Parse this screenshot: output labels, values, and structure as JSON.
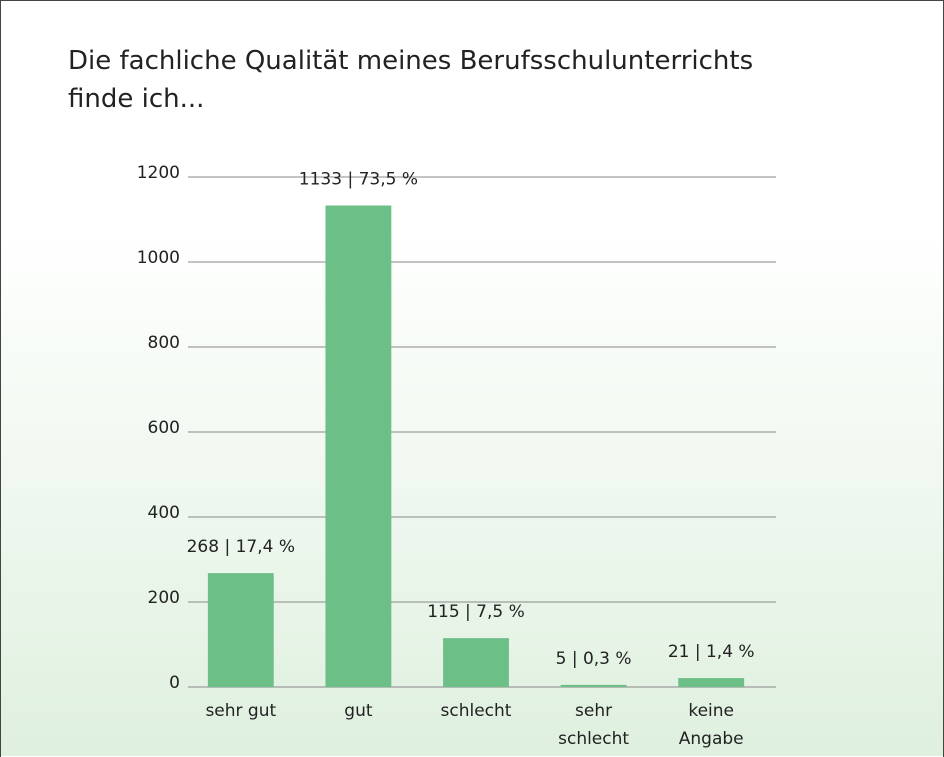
{
  "chart_data": {
    "type": "bar",
    "title": "Die fachliche Qualität meines Berufsschulunterrichts finde ich...",
    "categories": [
      "sehr gut",
      "gut",
      "schlecht",
      "sehr schlecht",
      "keine Angabe"
    ],
    "values": [
      268,
      1133,
      115,
      5,
      21
    ],
    "value_labels": [
      "268 | 17,4 %",
      "1133 | 73,5 %",
      "115 | 7,5 %",
      "5 | 0,3 %",
      "21 | 1,4 %"
    ],
    "color": "#6dbf88",
    "ylim": [
      0,
      1200
    ],
    "yticks": [
      0,
      200,
      400,
      600,
      800,
      1000,
      1200
    ],
    "grid": true
  }
}
